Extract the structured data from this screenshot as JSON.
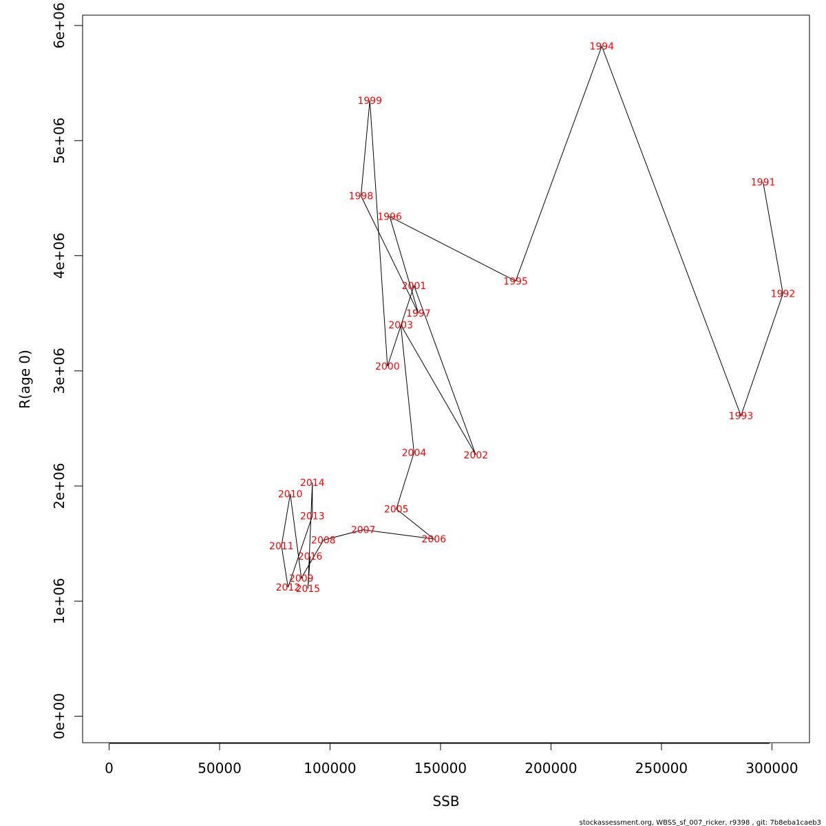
{
  "chart_data": {
    "type": "line",
    "title": "",
    "xlabel": "SSB",
    "ylabel": "R(age 0)",
    "xlim": [
      -12000,
      317000
    ],
    "ylim": [
      -230000,
      6090000
    ],
    "x_ticks": [
      0,
      50000,
      100000,
      150000,
      200000,
      250000,
      300000
    ],
    "x_tick_labels": [
      "0",
      "50000",
      "100000",
      "150000",
      "200000",
      "250000",
      "300000"
    ],
    "y_ticks": [
      0,
      1000000,
      2000000,
      3000000,
      4000000,
      5000000,
      6000000
    ],
    "y_tick_labels": [
      "0e+00",
      "1e+06",
      "2e+06",
      "3e+06",
      "4e+06",
      "5e+06",
      "6e+06"
    ],
    "grid": false,
    "line_color": "#000000",
    "label_color": "#ff0000",
    "points": [
      {
        "label": "1991",
        "x": 296000,
        "y": 4640000
      },
      {
        "label": "1992",
        "x": 305000,
        "y": 3670000
      },
      {
        "label": "1993",
        "x": 286000,
        "y": 2610000
      },
      {
        "label": "1994",
        "x": 223000,
        "y": 5820000
      },
      {
        "label": "1995",
        "x": 184000,
        "y": 3780000
      },
      {
        "label": "1996",
        "x": 127000,
        "y": 4340000
      },
      {
        "label": "1997",
        "x": 140000,
        "y": 3500000
      },
      {
        "label": "1998",
        "x": 114000,
        "y": 4520000
      },
      {
        "label": "1999",
        "x": 118000,
        "y": 5350000
      },
      {
        "label": "2000",
        "x": 126000,
        "y": 3040000
      },
      {
        "label": "2001",
        "x": 138000,
        "y": 3740000
      },
      {
        "label": "2002",
        "x": 166000,
        "y": 2270000
      },
      {
        "label": "2003",
        "x": 132000,
        "y": 3400000
      },
      {
        "label": "2004",
        "x": 138000,
        "y": 2290000
      },
      {
        "label": "2005",
        "x": 130000,
        "y": 1800000
      },
      {
        "label": "2006",
        "x": 147000,
        "y": 1540000
      },
      {
        "label": "2007",
        "x": 115000,
        "y": 1620000
      },
      {
        "label": "2008",
        "x": 97000,
        "y": 1530000
      },
      {
        "label": "2009",
        "x": 87000,
        "y": 1200000
      },
      {
        "label": "2010",
        "x": 82000,
        "y": 1930000
      },
      {
        "label": "2011",
        "x": 78000,
        "y": 1480000
      },
      {
        "label": "2012",
        "x": 81000,
        "y": 1120000
      },
      {
        "label": "2013",
        "x": 92000,
        "y": 1740000
      },
      {
        "label": "2014",
        "x": 92000,
        "y": 2030000
      },
      {
        "label": "2015",
        "x": 90000,
        "y": 1110000
      },
      {
        "label": "2016",
        "x": 91000,
        "y": 1390000
      }
    ]
  },
  "footer": {
    "note": "stockassessment.org, WBSS_sf_007_ricker, r9398 , git: 7b8eba1caeb3"
  }
}
